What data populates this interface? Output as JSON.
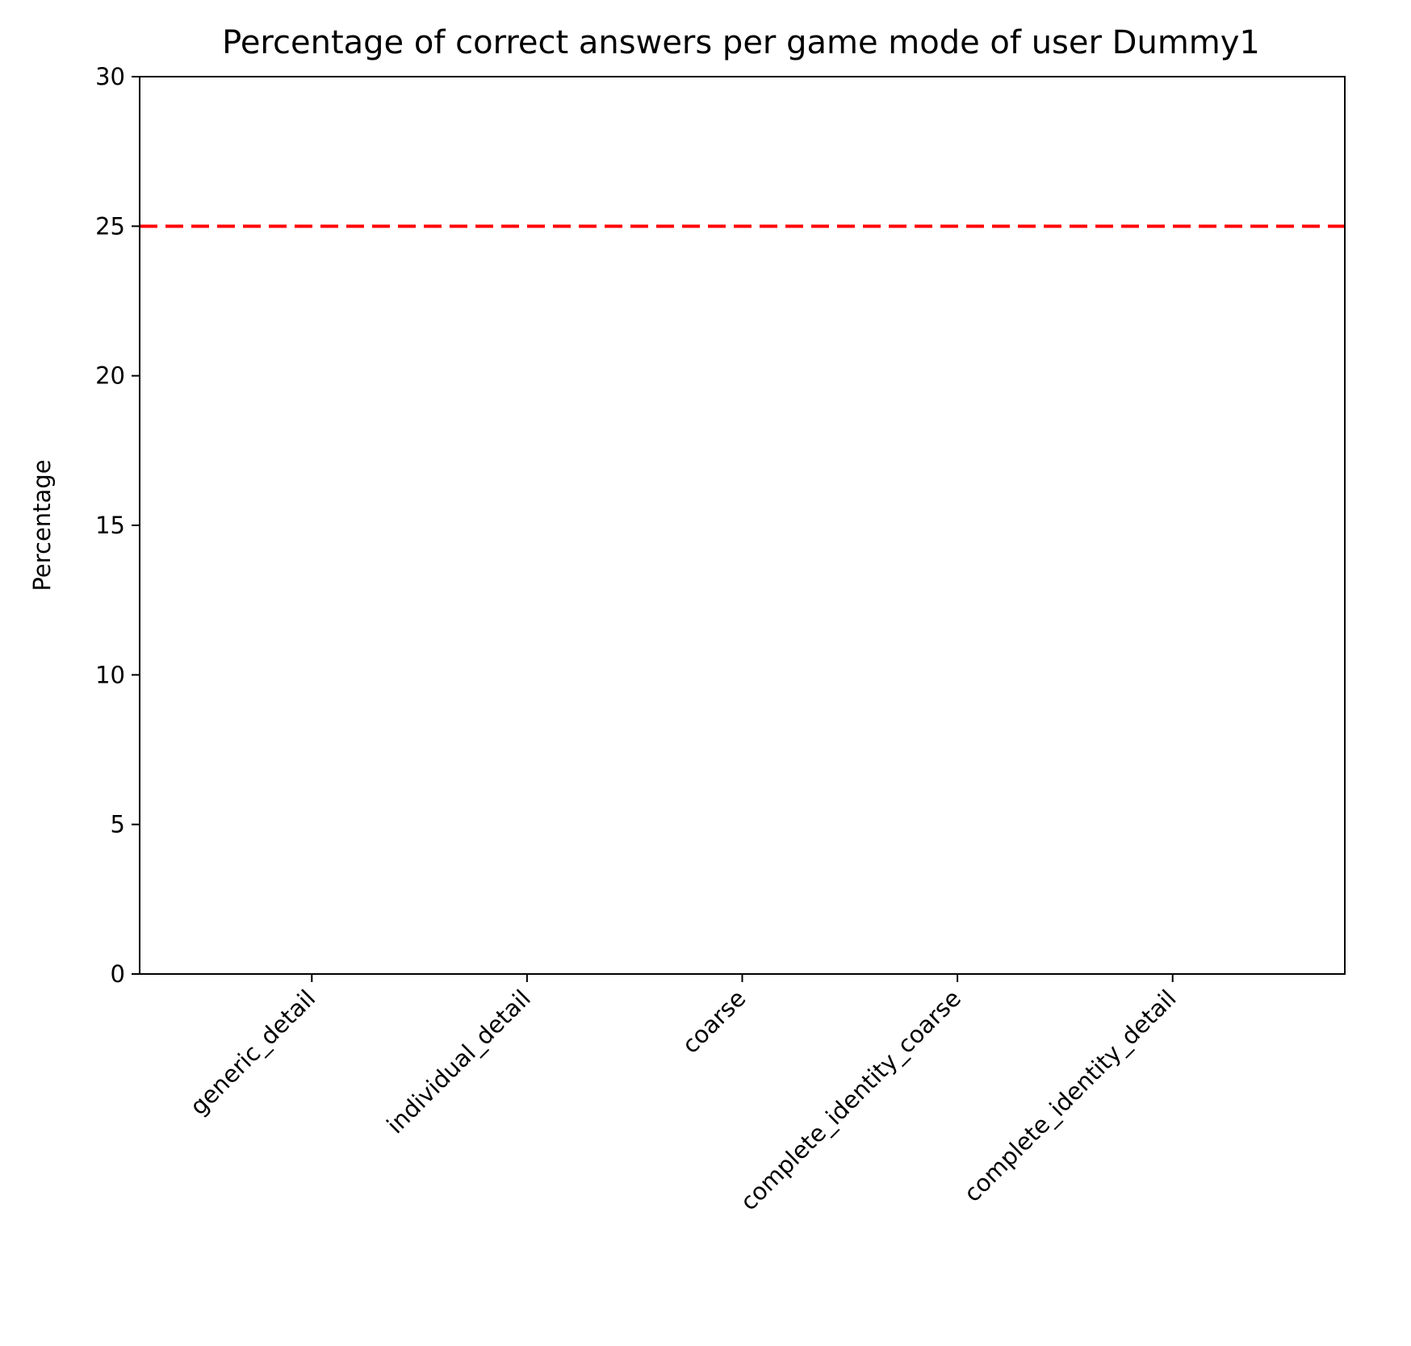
{
  "chart_data": {
    "type": "bar",
    "title": "Percentage of correct answers per game mode of user Dummy1",
    "xlabel": "",
    "ylabel": "Percentage",
    "categories": [
      "generic_detail",
      "individual_detail",
      "coarse",
      "complete_identity_coarse",
      "complete_identity_detail"
    ],
    "values": [
      0,
      0,
      0,
      0,
      0
    ],
    "ylim": [
      0,
      30
    ],
    "yticks": [
      "0",
      "5",
      "10",
      "15",
      "20",
      "25",
      "30"
    ],
    "reference_line": {
      "y": 25,
      "style": "dashed",
      "color": "#ff0000"
    },
    "grid": false,
    "legend": "none"
  }
}
